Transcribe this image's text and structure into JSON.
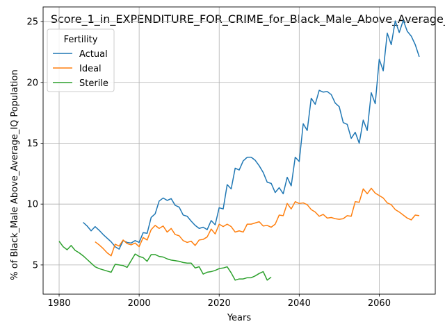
{
  "chart_data": {
    "type": "line",
    "title": "Score_1_in_EXPENDITURE_FOR_CRIME_for_Black_Male_Above_Average_IQ",
    "xlabel": "Years",
    "ylabel": "% of Black_Male Above_Average_IQ Population",
    "xlim": [
      1976,
      2074
    ],
    "ylim": [
      2.6,
      26.2
    ],
    "xticks": [
      1980,
      2000,
      2020,
      2040,
      2060
    ],
    "yticks": [
      5,
      10,
      15,
      20,
      25
    ],
    "grid": true,
    "legend": {
      "title": "Fertility",
      "placement": "top-left",
      "entries": [
        "Actual",
        "Ideal",
        "Sterile"
      ]
    },
    "series": [
      {
        "name": "Actual",
        "color": "#1f77b4",
        "points": [
          [
            1986,
            8.5
          ],
          [
            1987,
            8.2
          ],
          [
            1988,
            7.8
          ],
          [
            1989,
            8.15
          ],
          [
            1990,
            7.85
          ],
          [
            1991,
            7.5
          ],
          [
            1992,
            7.2
          ],
          [
            1993,
            6.9
          ],
          [
            1994,
            6.5
          ],
          [
            1995,
            6.3
          ],
          [
            1996,
            7.0
          ],
          [
            1997,
            6.85
          ],
          [
            1998,
            6.8
          ],
          [
            1999,
            7.0
          ],
          [
            2000,
            6.85
          ],
          [
            2001,
            7.65
          ],
          [
            2002,
            7.6
          ],
          [
            2003,
            8.9
          ],
          [
            2004,
            9.2
          ],
          [
            2005,
            10.25
          ],
          [
            2006,
            10.5
          ],
          [
            2007,
            10.3
          ],
          [
            2008,
            10.45
          ],
          [
            2009,
            9.9
          ],
          [
            2010,
            9.75
          ],
          [
            2011,
            9.1
          ],
          [
            2012,
            9.0
          ],
          [
            2013,
            8.6
          ],
          [
            2014,
            8.25
          ],
          [
            2015,
            8.0
          ],
          [
            2016,
            8.1
          ],
          [
            2017,
            7.9
          ],
          [
            2018,
            8.65
          ],
          [
            2019,
            8.3
          ],
          [
            2020,
            9.7
          ],
          [
            2021,
            9.6
          ],
          [
            2022,
            11.6
          ],
          [
            2023,
            11.25
          ],
          [
            2024,
            12.95
          ],
          [
            2025,
            12.8
          ],
          [
            2026,
            13.55
          ],
          [
            2027,
            13.85
          ],
          [
            2028,
            13.85
          ],
          [
            2029,
            13.6
          ],
          [
            2030,
            13.15
          ],
          [
            2031,
            12.6
          ],
          [
            2032,
            11.8
          ],
          [
            2033,
            11.7
          ],
          [
            2034,
            10.95
          ],
          [
            2035,
            11.35
          ],
          [
            2036,
            10.85
          ],
          [
            2037,
            12.2
          ],
          [
            2038,
            11.5
          ],
          [
            2039,
            13.85
          ],
          [
            2040,
            13.5
          ],
          [
            2041,
            16.6
          ],
          [
            2042,
            16.05
          ],
          [
            2043,
            18.7
          ],
          [
            2044,
            18.2
          ],
          [
            2045,
            19.35
          ],
          [
            2046,
            19.2
          ],
          [
            2047,
            19.25
          ],
          [
            2048,
            19.0
          ],
          [
            2049,
            18.3
          ],
          [
            2050,
            18.0
          ],
          [
            2051,
            16.7
          ],
          [
            2052,
            16.55
          ],
          [
            2053,
            15.4
          ],
          [
            2054,
            15.9
          ],
          [
            2055,
            15.0
          ],
          [
            2056,
            16.9
          ],
          [
            2057,
            16.05
          ],
          [
            2058,
            19.15
          ],
          [
            2059,
            18.25
          ],
          [
            2060,
            21.9
          ],
          [
            2061,
            20.95
          ],
          [
            2062,
            24.05
          ],
          [
            2063,
            23.1
          ],
          [
            2064,
            25.05
          ],
          [
            2065,
            24.1
          ],
          [
            2066,
            25.1
          ],
          [
            2067,
            24.2
          ],
          [
            2068,
            23.8
          ],
          [
            2069,
            23.1
          ],
          [
            2070,
            22.1
          ]
        ]
      },
      {
        "name": "Ideal",
        "color": "#ff7f0e",
        "points": [
          [
            1989,
            6.9
          ],
          [
            1990,
            6.65
          ],
          [
            1991,
            6.35
          ],
          [
            1992,
            6.0
          ],
          [
            1993,
            5.75
          ],
          [
            1994,
            6.7
          ],
          [
            1995,
            6.55
          ],
          [
            1996,
            7.05
          ],
          [
            1997,
            6.75
          ],
          [
            1998,
            6.65
          ],
          [
            1999,
            6.8
          ],
          [
            2000,
            6.5
          ],
          [
            2001,
            7.25
          ],
          [
            2002,
            7.05
          ],
          [
            2003,
            7.9
          ],
          [
            2004,
            8.25
          ],
          [
            2005,
            8.0
          ],
          [
            2006,
            8.2
          ],
          [
            2007,
            7.7
          ],
          [
            2008,
            8.0
          ],
          [
            2009,
            7.5
          ],
          [
            2010,
            7.4
          ],
          [
            2011,
            7.0
          ],
          [
            2012,
            6.85
          ],
          [
            2013,
            6.95
          ],
          [
            2014,
            6.6
          ],
          [
            2015,
            7.05
          ],
          [
            2016,
            7.1
          ],
          [
            2017,
            7.3
          ],
          [
            2018,
            7.95
          ],
          [
            2019,
            7.55
          ],
          [
            2020,
            8.35
          ],
          [
            2021,
            8.15
          ],
          [
            2022,
            8.35
          ],
          [
            2023,
            8.15
          ],
          [
            2024,
            7.7
          ],
          [
            2025,
            7.8
          ],
          [
            2026,
            7.7
          ],
          [
            2027,
            8.35
          ],
          [
            2028,
            8.35
          ],
          [
            2029,
            8.45
          ],
          [
            2030,
            8.55
          ],
          [
            2031,
            8.2
          ],
          [
            2032,
            8.25
          ],
          [
            2033,
            8.1
          ],
          [
            2034,
            8.35
          ],
          [
            2035,
            9.1
          ],
          [
            2036,
            9.05
          ],
          [
            2037,
            10.05
          ],
          [
            2038,
            9.6
          ],
          [
            2039,
            10.2
          ],
          [
            2040,
            10.05
          ],
          [
            2041,
            10.1
          ],
          [
            2042,
            9.95
          ],
          [
            2043,
            9.55
          ],
          [
            2044,
            9.35
          ],
          [
            2045,
            9.0
          ],
          [
            2046,
            9.15
          ],
          [
            2047,
            8.85
          ],
          [
            2048,
            8.9
          ],
          [
            2049,
            8.8
          ],
          [
            2050,
            8.75
          ],
          [
            2051,
            8.8
          ],
          [
            2052,
            9.05
          ],
          [
            2053,
            9.0
          ],
          [
            2054,
            10.2
          ],
          [
            2055,
            10.15
          ],
          [
            2056,
            11.25
          ],
          [
            2057,
            10.85
          ],
          [
            2058,
            11.3
          ],
          [
            2059,
            10.9
          ],
          [
            2060,
            10.7
          ],
          [
            2061,
            10.5
          ],
          [
            2062,
            10.1
          ],
          [
            2063,
            9.95
          ],
          [
            2064,
            9.55
          ],
          [
            2065,
            9.35
          ],
          [
            2066,
            9.1
          ],
          [
            2067,
            8.85
          ],
          [
            2068,
            8.7
          ],
          [
            2069,
            9.1
          ],
          [
            2070,
            9.05
          ]
        ]
      },
      {
        "name": "Sterile",
        "color": "#2ca02c",
        "points": [
          [
            1980,
            6.95
          ],
          [
            1981,
            6.5
          ],
          [
            1982,
            6.25
          ],
          [
            1983,
            6.6
          ],
          [
            1984,
            6.2
          ],
          [
            1985,
            6.0
          ],
          [
            1986,
            5.75
          ],
          [
            1987,
            5.45
          ],
          [
            1988,
            5.15
          ],
          [
            1989,
            4.85
          ],
          [
            1990,
            4.7
          ],
          [
            1991,
            4.6
          ],
          [
            1992,
            4.5
          ],
          [
            1993,
            4.4
          ],
          [
            1994,
            5.05
          ],
          [
            1995,
            5.0
          ],
          [
            1996,
            4.95
          ],
          [
            1997,
            4.8
          ],
          [
            1998,
            5.35
          ],
          [
            1999,
            5.9
          ],
          [
            2000,
            5.7
          ],
          [
            2001,
            5.6
          ],
          [
            2002,
            5.3
          ],
          [
            2003,
            5.85
          ],
          [
            2004,
            5.85
          ],
          [
            2005,
            5.7
          ],
          [
            2006,
            5.65
          ],
          [
            2007,
            5.5
          ],
          [
            2008,
            5.4
          ],
          [
            2009,
            5.35
          ],
          [
            2010,
            5.3
          ],
          [
            2011,
            5.2
          ],
          [
            2012,
            5.15
          ],
          [
            2013,
            5.15
          ],
          [
            2014,
            4.75
          ],
          [
            2015,
            4.85
          ],
          [
            2016,
            4.25
          ],
          [
            2017,
            4.4
          ],
          [
            2018,
            4.45
          ],
          [
            2019,
            4.55
          ],
          [
            2020,
            4.7
          ],
          [
            2021,
            4.75
          ],
          [
            2022,
            4.85
          ],
          [
            2023,
            4.35
          ],
          [
            2024,
            3.75
          ],
          [
            2025,
            3.85
          ],
          [
            2026,
            3.85
          ],
          [
            2027,
            3.95
          ],
          [
            2028,
            3.95
          ],
          [
            2029,
            4.1
          ],
          [
            2030,
            4.3
          ],
          [
            2031,
            4.45
          ],
          [
            2032,
            3.75
          ],
          [
            2033,
            4.0
          ]
        ]
      }
    ]
  }
}
